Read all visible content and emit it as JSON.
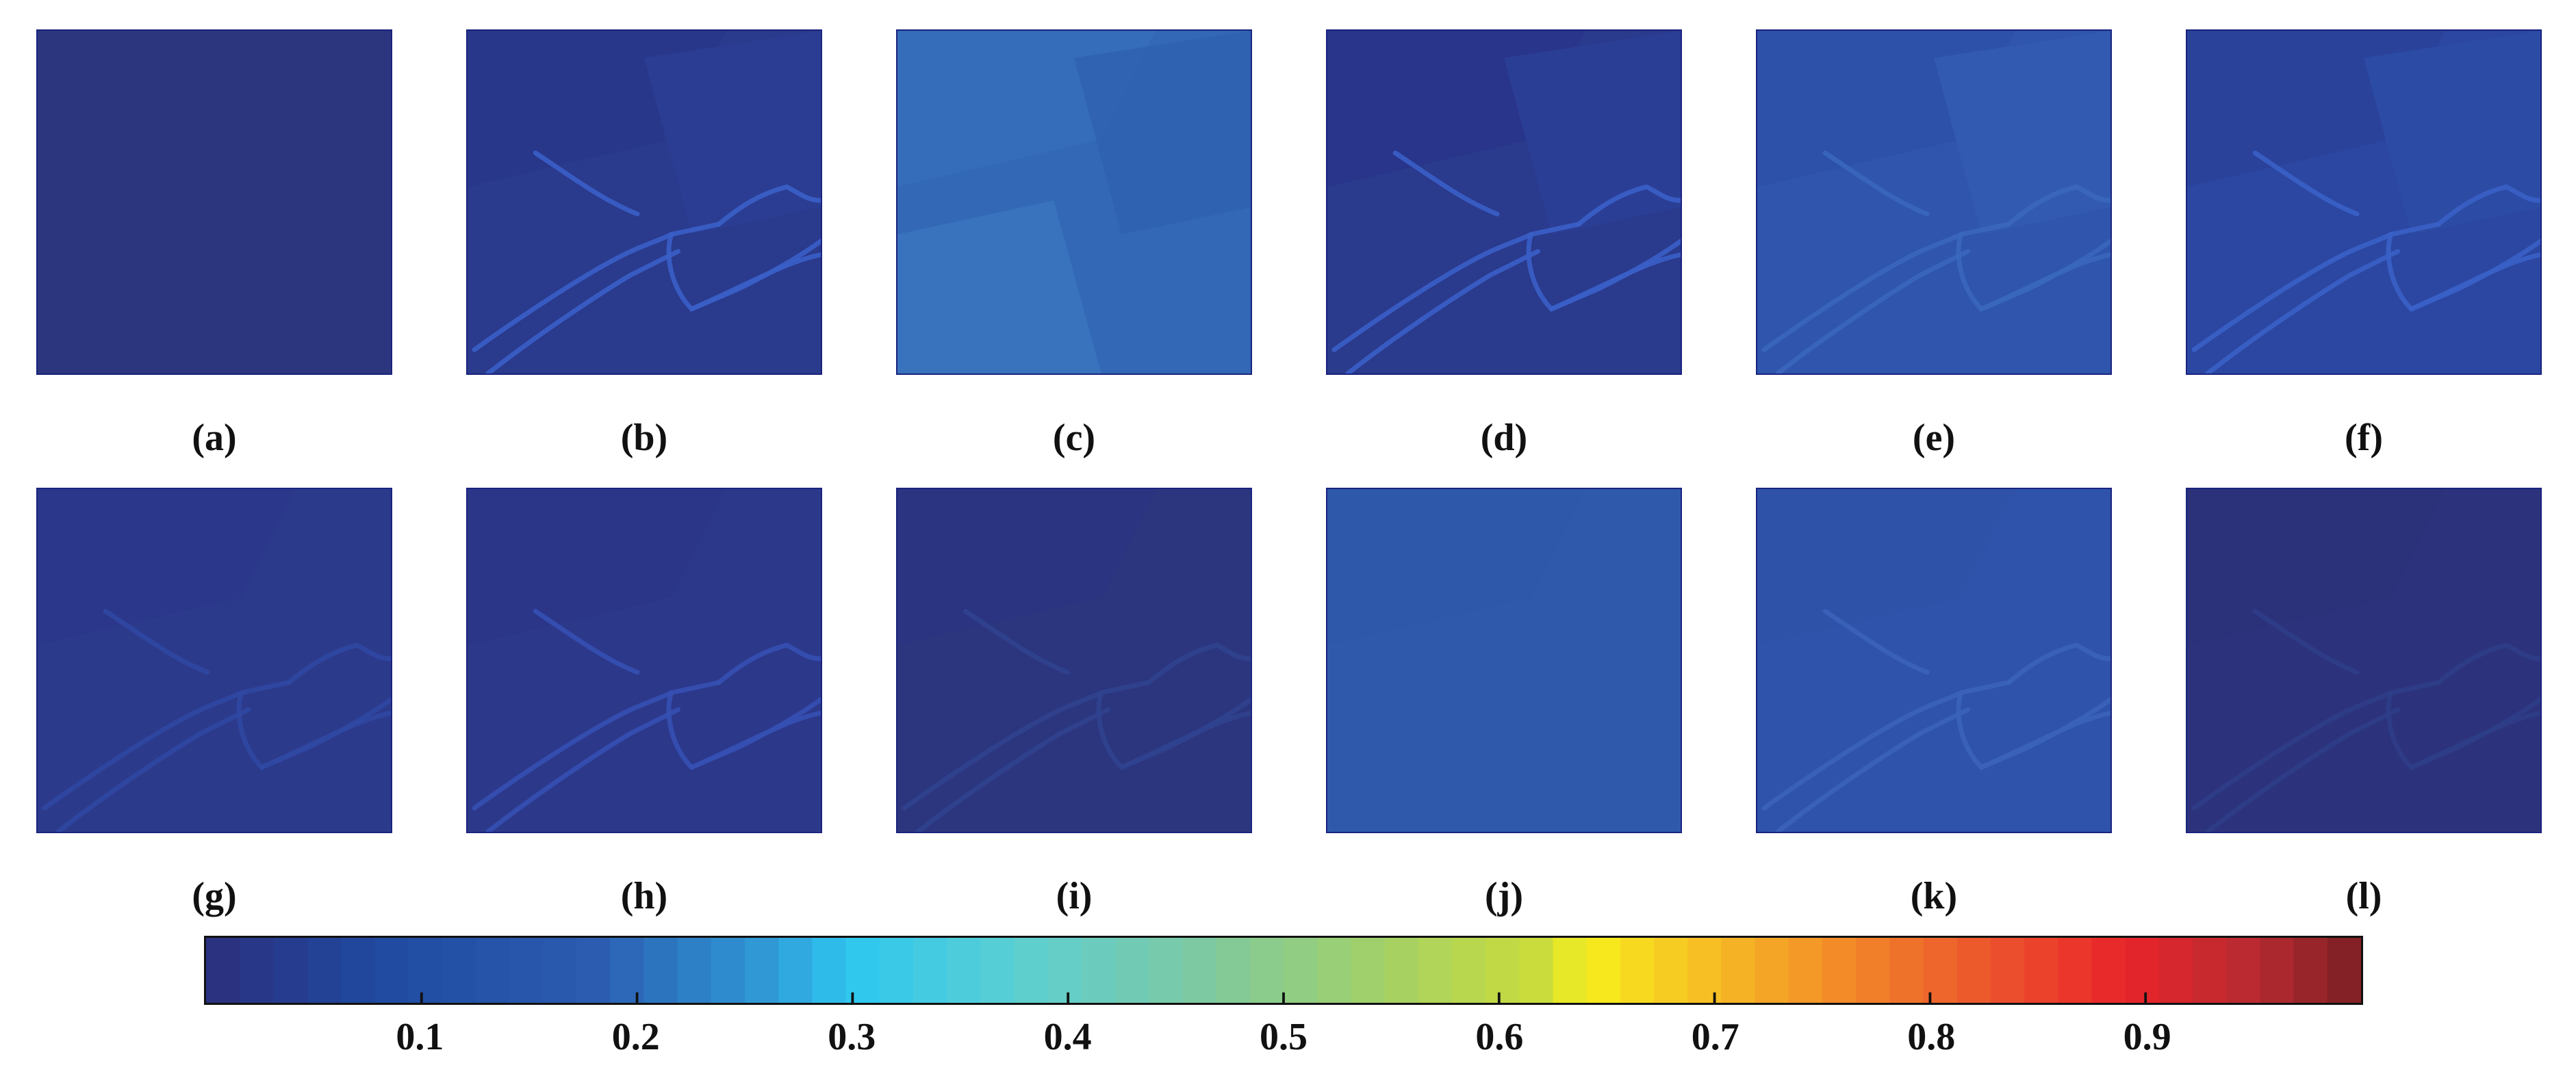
{
  "panels": [
    {
      "label": "(a)",
      "base": "#2c367f",
      "edges": false,
      "edge": "#2c367f",
      "patches": []
    },
    {
      "label": "(b)",
      "base": "#2a3a8c",
      "edges": true,
      "edge": "#3a5fc8",
      "patches": [
        "#28378a",
        "#2b3e93"
      ]
    },
    {
      "label": "(c)",
      "base": "#3268b6",
      "edges": false,
      "edge": "#3a72be",
      "patches": [
        "#366fbc",
        "#2f62b0",
        "#3b75c0"
      ]
    },
    {
      "label": "(d)",
      "base": "#2a3a8c",
      "edges": true,
      "edge": "#3a5fc8",
      "patches": [
        "#28358a",
        "#2c4096"
      ]
    },
    {
      "label": "(e)",
      "base": "#2f55ad",
      "edges": true,
      "edge": "#3a67bd",
      "patches": [
        "#2d50a8",
        "#335cb2"
      ]
    },
    {
      "label": "(f)",
      "base": "#2b47a2",
      "edges": true,
      "edge": "#3a60c6",
      "patches": [
        "#2a4299",
        "#2d4ca6"
      ]
    },
    {
      "label": "(g)",
      "base": "#2c3a8c",
      "edges": true,
      "edge": "#3048a2",
      "patches": [
        "#2b378a"
      ]
    },
    {
      "label": "(h)",
      "base": "#2c388a",
      "edges": true,
      "edge": "#3550b2",
      "patches": [
        "#2b3688"
      ]
    },
    {
      "label": "(i)",
      "base": "#2c367f",
      "edges": true,
      "edge": "#30438f",
      "patches": [
        "#2b3480"
      ]
    },
    {
      "label": "(j)",
      "base": "#2f5aab",
      "edges": false,
      "edge": "#2f5aab",
      "patches": [
        "#2e58a8"
      ]
    },
    {
      "label": "(k)",
      "base": "#2f53aa",
      "edges": true,
      "edge": "#3a63b8",
      "patches": [
        "#2e52a8"
      ]
    },
    {
      "label": "(l)",
      "base": "#2c337c",
      "edges": true,
      "edge": "#2f3d88",
      "patches": [
        "#2b327a"
      ]
    }
  ],
  "colorbar": {
    "colors": [
      "#2c2f7c",
      "#1f4aa0",
      "#2b5cb0",
      "#2f9ad6",
      "#2ec8f0",
      "#5ecfd0",
      "#7dc9a3",
      "#9fd06b",
      "#cbdc3a",
      "#f7ef1c",
      "#f7c324",
      "#f39128",
      "#ec5a2c",
      "#e9242a",
      "#b72b31",
      "#7a1f24"
    ],
    "stops": [
      0.0,
      0.08,
      0.18,
      0.26,
      0.3,
      0.38,
      0.46,
      0.54,
      0.62,
      0.64,
      0.69,
      0.75,
      0.82,
      0.89,
      0.95,
      1.0
    ],
    "steps": 64,
    "min": 0.0,
    "max": 1.0,
    "ticks": [
      {
        "value": 0.1,
        "label": "0.1"
      },
      {
        "value": 0.2,
        "label": "0.2"
      },
      {
        "value": 0.3,
        "label": "0.3"
      },
      {
        "value": 0.4,
        "label": "0.4"
      },
      {
        "value": 0.5,
        "label": "0.5"
      },
      {
        "value": 0.6,
        "label": "0.6"
      },
      {
        "value": 0.7,
        "label": "0.7"
      },
      {
        "value": 0.8,
        "label": "0.8"
      },
      {
        "value": 0.9,
        "label": "0.9"
      }
    ]
  }
}
